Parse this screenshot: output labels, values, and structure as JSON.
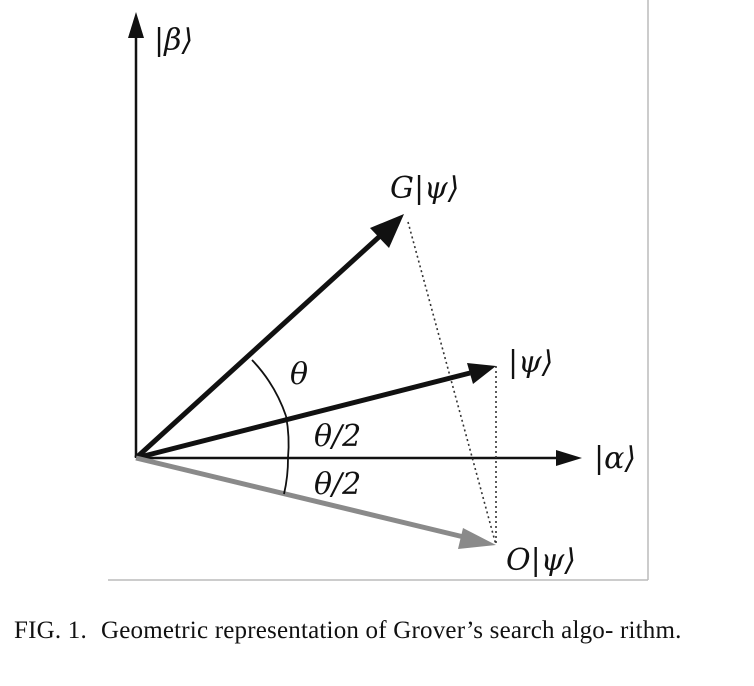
{
  "figure": {
    "labels": {
      "beta": "|β⟩",
      "alpha": "|α⟩",
      "psi": "|ψ⟩",
      "g_psi": "G|ψ⟩",
      "o_psi": "O|ψ⟩",
      "theta": "θ",
      "half_theta_upper": "θ/2",
      "half_theta_lower": "θ/2"
    },
    "colors": {
      "vectors": "#111111",
      "oracle_vector": "#8a8a8a",
      "frame": "#bbbbbb"
    }
  },
  "caption": {
    "label": "FIG. 1.",
    "text": "Geometric representation of Grover’s search algo- rithm."
  }
}
